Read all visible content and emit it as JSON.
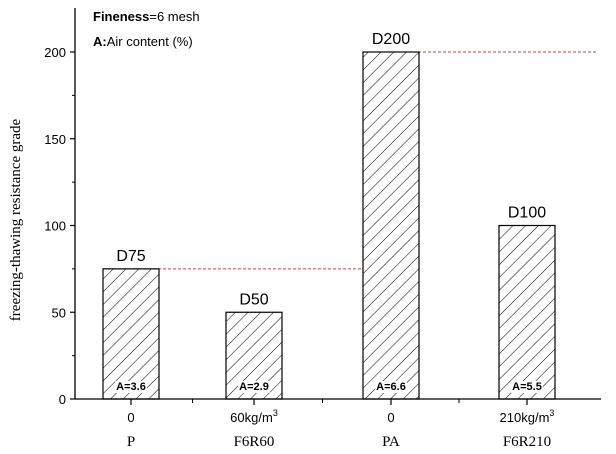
{
  "chart_data": {
    "type": "bar",
    "categories": [
      "0",
      "60kg/m",
      "0",
      "210kg/m"
    ],
    "category_superscripts": [
      "",
      "3",
      "",
      "3"
    ],
    "groups": [
      "P",
      "F6R60",
      "PA",
      "F6R210"
    ],
    "values": [
      75,
      50,
      200,
      100
    ],
    "bar_labels": [
      "D75",
      "D50",
      "D200",
      "D100"
    ],
    "air_content_labels": [
      "A=3.6",
      "A=2.9",
      "A=6.6",
      "A=5.5"
    ],
    "reference_lines": [
      75,
      200
    ],
    "ylabel": "freezing-thawing resistance grade",
    "ylim": [
      0,
      220
    ],
    "yticks": [
      "0",
      "50",
      "100",
      "150",
      "200"
    ],
    "yticks_values": [
      0,
      50,
      100,
      150,
      200
    ],
    "grid": false,
    "legend": {
      "line1_bold": "Fineness",
      "line1_rest": "=6 mesh",
      "line2_bold": "A:",
      "line2_rest": "Air content (%)"
    },
    "colors": {
      "bar_outline": "#000000",
      "reference_line": "#e8393a",
      "hatch": "#000000"
    }
  }
}
